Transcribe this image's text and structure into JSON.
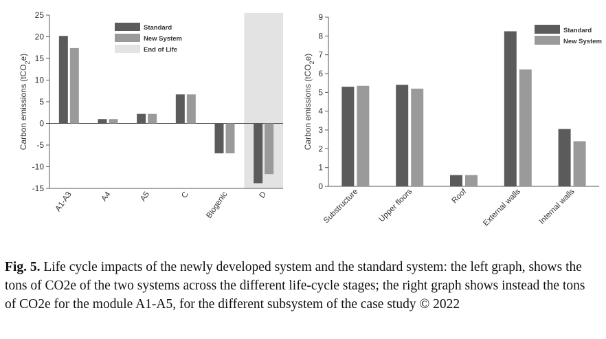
{
  "chart_data": [
    {
      "type": "bar",
      "title": "",
      "xlabel": "",
      "ylabel": "Carbon emissions (tCO",
      "ylabel_sub": "2",
      "ylabel_end": "e)",
      "ylim": [
        -15,
        25
      ],
      "yticks": [
        -15,
        -10,
        -5,
        0,
        5,
        10,
        15,
        20,
        25
      ],
      "categories": [
        "A1-A3",
        "A4",
        "A5",
        "C",
        "Biogenic",
        "D"
      ],
      "series": [
        {
          "name": "Standard",
          "color": "#5b5b5b",
          "values": [
            20.2,
            1.0,
            2.2,
            6.7,
            -6.9,
            -13.8
          ]
        },
        {
          "name": "New System",
          "color": "#9a9a9a",
          "values": [
            17.4,
            1.0,
            2.2,
            6.7,
            -6.9,
            -11.7
          ]
        }
      ],
      "highlight": {
        "label": "End of Life",
        "category": "D",
        "color": "#e3e3e3"
      },
      "legend_position": "top-right",
      "grid": false
    },
    {
      "type": "bar",
      "title": "",
      "xlabel": "",
      "ylabel": "Carbon emissions (tCO",
      "ylabel_sub": "2",
      "ylabel_end": "e)",
      "ylim": [
        0,
        9
      ],
      "yticks": [
        0,
        1,
        2,
        3,
        4,
        5,
        6,
        7,
        8,
        9
      ],
      "categories": [
        "Substructure",
        "Upper floors",
        "Roof",
        "External walls",
        "Internal walls"
      ],
      "series": [
        {
          "name": "Standard",
          "color": "#5b5b5b",
          "values": [
            5.3,
            5.4,
            0.6,
            8.25,
            3.05
          ]
        },
        {
          "name": "New System",
          "color": "#9a9a9a",
          "values": [
            5.35,
            5.2,
            0.6,
            6.22,
            2.4
          ]
        }
      ],
      "legend_position": "top-right",
      "grid": false
    }
  ],
  "caption": {
    "label": "Fig. 5.",
    "text": " Life cycle impacts of the newly developed system and the standard system: the left graph, shows the tons of CO2e of the two systems across the different life-cycle stages; the right graph shows instead the tons of CO2e for the module A1-A5, for the different subsystem of the case study  © 2022"
  }
}
